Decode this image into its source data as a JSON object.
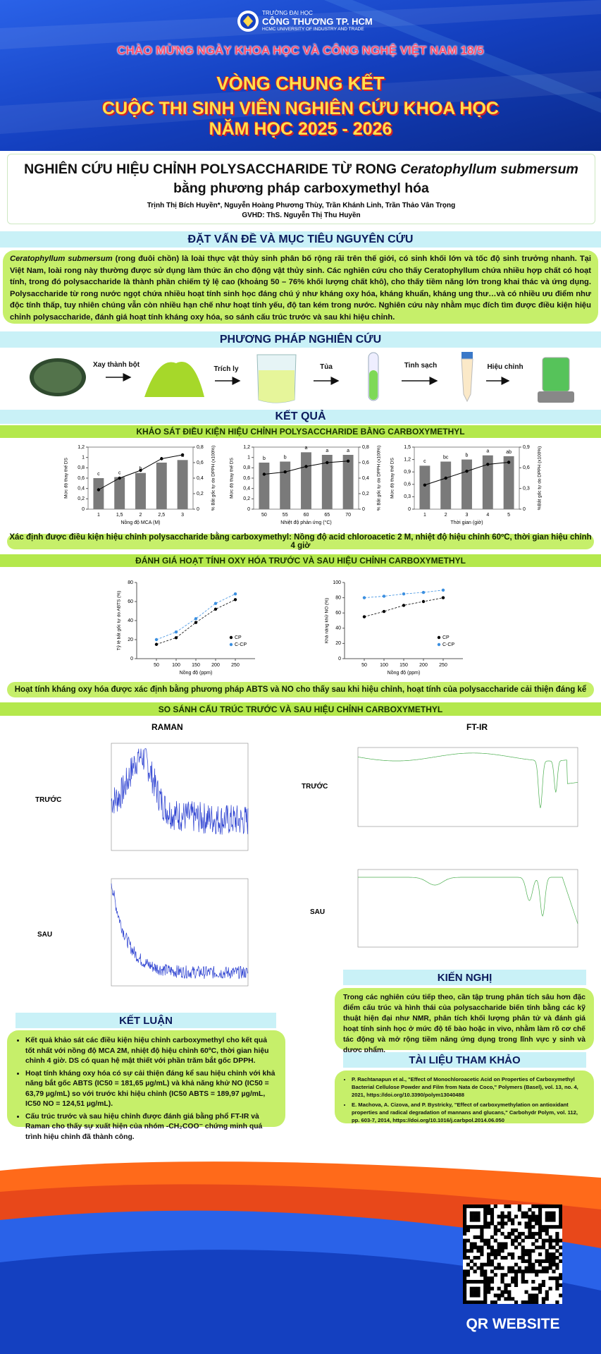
{
  "header": {
    "university_small": "TRƯỜNG ĐẠI HỌC",
    "university": "CÔNG THƯƠNG TP. HCM",
    "university_en": "HCMC UNIVERSITY OF INDUSTRY AND TRADE",
    "celebration": "CHÀO MỪNG NGÀY KHOA HỌC VÀ CÔNG NGHỆ VIỆT NAM 18/5",
    "round": "VÒNG CHUNG KẾT",
    "contest": "CUỘC THI SINH VIÊN NGHIÊN CỨU KHOA HỌC",
    "year": "NĂM HỌC 2025 - 2026"
  },
  "title": {
    "before": "NGHIÊN CỨU HIỆU CHỈNH POLYSACCHARIDE TỪ RONG ",
    "italic": "Ceratophyllum submersum",
    "after": " bằng phương pháp carboxymethyl hóa",
    "authors": "Trịnh Thị Bích Huyền*, Nguyễn Hoàng Phương Thùy, Trần Khánh Linh, Trần Thảo Vân Trọng",
    "advisor": "GVHD: ThS. Nguyễn Thị Thu Huyền"
  },
  "intro": {
    "heading": "ĐẶT VẤN ĐỀ VÀ MỤC TIÊU NGUYÊN CỨU",
    "species": "Ceratophyllum submersum",
    "text": " (rong đuôi chồn) là loài thực vật thủy sinh phân bố rộng rãi trên thế giới, có sinh khối lớn và tốc độ sinh trưởng nhanh. Tại Việt Nam, loài rong này thường được sử dụng làm thức ăn cho động vật thủy sinh. Các nghiên cứu cho thấy Ceratophyllum chứa nhiều hợp chất có hoạt tính, trong đó polysaccharide là thành phần chiếm tỷ lệ cao (khoảng 50 – 76% khối lượng chất khô), cho thấy tiềm năng lớn trong khai thác và ứng dụng. Polysaccharide từ rong nước ngọt chứa nhiều hoạt tính sinh học đáng chú ý như kháng oxy hóa, kháng khuẩn, kháng ung thư…và có nhiều ưu điểm như độc tính thấp, tuy nhiên chúng vẫn còn nhiều hạn chế như hoạt tính yếu, độ tan kém trong nước. Nghiên cứu này nhằm mục đích tìm được điều kiện hiệu chỉnh polysaccharide, đánh giá hoạt tính kháng oxy hóa, so sánh cấu trúc trước và sau khi hiệu chỉnh."
  },
  "methods": {
    "heading": "PHƯƠNG PHÁP NGHIÊN CỨU",
    "steps": [
      "Xay thành bột",
      "Trích ly",
      "Tủa",
      "Tinh sạch",
      "Hiệu chỉnh"
    ]
  },
  "results": {
    "heading": "KẾT QUẢ",
    "section1": "KHẢO SÁT ĐIỀU KIỆN HIỆU CHỈNH POLYSACCHARIDE BẰNG CARBOXYMETHYL",
    "conclusion1": "Xác định được điều kiện hiệu chỉnh polysaccharide bằng carboxymethyl: Nồng độ acid chloroacetic 2 M, nhiệt độ hiệu chỉnh 60ºC, thời gian hiệu chỉnh 4 giờ",
    "section2": "ĐÁNH GIÁ HOẠT TÍNH OXY HÓA TRƯỚC VÀ SAU HIỆU CHỈNH CARBOXYMETHYL",
    "conclusion2": "Hoạt tính kháng oxy hóa được xác định bằng phương pháp ABTS và NO cho thấy sau khi hiệu chỉnh, hoạt tính của polysaccharide cải thiện đáng kể",
    "section3": "SO SÁNH CẤU TRÚC TRƯỚC VÀ SAU HIỆU CHỈNH CARBOXYMETHYL",
    "raman": "RAMAN",
    "ftir": "FT-IR",
    "before": "TRƯỚC",
    "after": "SAU"
  },
  "chart_data": [
    {
      "type": "bar",
      "x_label": "Nồng độ MCA (M)",
      "y_label": "Mức độ thay thế DS",
      "y2_label": "% Bắt gốc tự do DPPH (x100%)",
      "categories": [
        "1",
        "1,5",
        "2",
        "2,5",
        "3"
      ],
      "series": [
        {
          "name": "DS",
          "color": "#7a7a7a",
          "values": [
            0.6,
            0.62,
            0.7,
            0.9,
            0.95
          ]
        },
        {
          "name": "DPPH",
          "color": "#000000",
          "axis": "y2",
          "values": [
            0.25,
            0.4,
            0.5,
            0.65,
            0.7
          ]
        }
      ],
      "annotations": [
        "c",
        "c",
        "b",
        "a",
        "a"
      ],
      "ylim": [
        0,
        1.2
      ],
      "yticks": [
        0,
        {
          "value": 0.2,
          "label": "0,2"
        },
        {
          "value": 0.4,
          "label": "0,4"
        },
        {
          "value": 0.6,
          "label": "0,6"
        },
        {
          "value": 0.8,
          "label": "0,8"
        },
        1,
        {
          "value": 1.2,
          "label": "1,2"
        }
      ],
      "y2lim": [
        0,
        0.8
      ],
      "y2ticks": [
        0,
        {
          "value": 0.2,
          "label": "0,2"
        },
        {
          "value": 0.4,
          "label": "0,4"
        },
        {
          "value": 0.6,
          "label": "0,6"
        },
        {
          "value": 0.8,
          "label": "0,8"
        }
      ]
    },
    {
      "type": "bar",
      "x_label": "Nhiệt độ phản ứng (°C)",
      "y_label": "Mức độ thay thế DS",
      "y2_label": "% Bắt gốc tự do DPPH (x100%)",
      "categories": [
        "50",
        "55",
        "60",
        "65",
        "70"
      ],
      "series": [
        {
          "name": "DS",
          "color": "#7a7a7a",
          "values": [
            0.9,
            0.92,
            1.1,
            1.05,
            1.05
          ]
        },
        {
          "name": "DPPH",
          "color": "#000000",
          "axis": "y2",
          "values": [
            0.45,
            0.48,
            0.55,
            0.6,
            0.62
          ]
        }
      ],
      "annotations": [
        "b",
        "b",
        "a",
        "a",
        "a"
      ],
      "ylim": [
        0,
        1.2
      ],
      "yticks": [
        0,
        {
          "value": 0.2,
          "label": "0,2"
        },
        {
          "value": 0.4,
          "label": "0,4"
        },
        {
          "value": 0.6,
          "label": "0,6"
        },
        {
          "value": 0.8,
          "label": "0,8"
        },
        1,
        {
          "value": 1.2,
          "label": "1,2"
        }
      ],
      "y2lim": [
        0,
        0.8
      ],
      "y2ticks": [
        0,
        {
          "value": 0.2,
          "label": "0,2"
        },
        {
          "value": 0.4,
          "label": "0,4"
        },
        {
          "value": 0.6,
          "label": "0,6"
        },
        {
          "value": 0.8,
          "label": "0,8"
        }
      ]
    },
    {
      "type": "bar",
      "x_label": "Thời gian (giờ)",
      "y_label": "Mức độ thay thế DS",
      "y2_label": "%Bắt gốc tự do DPPH (x100%)",
      "categories": [
        "1",
        "2",
        "3",
        "4",
        "5"
      ],
      "series": [
        {
          "name": "DS",
          "color": "#7a7a7a",
          "values": [
            1.05,
            1.15,
            1.2,
            1.3,
            1.28
          ]
        },
        {
          "name": "DPPH",
          "color": "#000000",
          "axis": "y2",
          "values": [
            0.35,
            0.45,
            0.55,
            0.65,
            0.68
          ]
        }
      ],
      "annotations": [
        "c",
        "bc",
        "b",
        "a",
        "ab"
      ],
      "ylim": [
        0,
        1.5
      ],
      "yticks": [
        0,
        {
          "value": 0.3,
          "label": "0,3"
        },
        {
          "value": 0.6,
          "label": "0,6"
        },
        {
          "value": 0.9,
          "label": "0,9"
        },
        {
          "value": 1.2,
          "label": "1,2"
        },
        {
          "value": 1.5,
          "label": "1,5"
        }
      ],
      "y2lim": [
        0,
        0.9
      ],
      "y2ticks": [
        0,
        {
          "value": 0.3,
          "label": "0,3"
        },
        {
          "value": 0.6,
          "label": "0,6"
        },
        {
          "value": 0.9,
          "label": "0,9"
        }
      ]
    },
    {
      "type": "line",
      "x_label": "Nồng độ (ppm)",
      "y_label": "Tỷ lệ bắt gốc tự do ABTS (%)",
      "x": [
        50,
        100,
        150,
        200,
        250
      ],
      "series": [
        {
          "name": "CP",
          "color": "#000000",
          "values": [
            15,
            22,
            38,
            52,
            62
          ]
        },
        {
          "name": "C-CP",
          "color": "#3b8fe0",
          "values": [
            20,
            28,
            42,
            58,
            68
          ]
        }
      ],
      "xlim": [
        0,
        300
      ],
      "xticks": [
        50,
        100,
        150,
        200,
        250
      ],
      "ylim": [
        0,
        80
      ],
      "yticks": [
        0,
        20,
        40,
        60,
        80
      ],
      "legend": "bottom-right"
    },
    {
      "type": "line",
      "x_label": "Nồng độ (ppm)",
      "y_label": "Khả năng khử NO (%)",
      "x": [
        50,
        100,
        150,
        200,
        250
      ],
      "series": [
        {
          "name": "CP",
          "color": "#000000",
          "values": [
            55,
            62,
            70,
            75,
            80
          ]
        },
        {
          "name": "C-CP",
          "color": "#3b8fe0",
          "values": [
            80,
            82,
            85,
            87,
            90
          ]
        }
      ],
      "xlim": [
        0,
        300
      ],
      "xticks": [
        50,
        100,
        150,
        200,
        250
      ],
      "ylim": [
        0,
        100
      ],
      "yticks": [
        0,
        20,
        40,
        60,
        80,
        100
      ],
      "legend": "bottom-right"
    }
  ],
  "conclusion": {
    "heading": "KẾT LUẬN",
    "items": [
      "Kết quả khảo sát các điều kiện hiệu chỉnh carboxymethyl cho kết quả tốt nhất với nồng độ MCA 2M, nhiệt độ hiệu chỉnh 60ºC, thời gian hiệu chỉnh 4 giờ. DS có quan hệ mật thiết với phần trăm bắt gốc DPPH.",
      "Hoạt tính kháng oxy hóa có sự cải thiện đáng kể sau hiệu chỉnh với khả năng bắt gốc ABTS (IC50 = 181,65 µg/mL) và khả năng khử NO (IC50 = 63,79 µg/mL) so với trước khi hiệu chỉnh (IC50 ABTS = 189,97 µg/mL, IC50 NO = 124,51 µg/mL).",
      "Cấu trúc trước và sau hiệu chỉnh được đánh giá bằng phổ FT-IR và Raman cho thấy sự xuất hiện của nhóm -CH₂COO⁻ chứng minh quá trình hiệu chỉnh đã thành công."
    ]
  },
  "recommendation": {
    "heading": "KIẾN NGHỊ",
    "text": "Trong các nghiên cứu tiếp theo, cần tập trung phân tích sâu hơn đặc điểm cấu trúc và hình thái của polysaccharide biến tính bằng các kỹ thuật hiện đại như NMR, phân tích khối lượng phân tử và đánh giá hoạt tính sinh học ở mức độ tế bào hoặc in vivo, nhằm làm rõ cơ chế tác động và mở rộng tiềm năng ứng dụng trong lĩnh vực y sinh và dược phẩm."
  },
  "references": {
    "heading": "TÀI LIỆU THAM KHẢO",
    "items": [
      "P. Rachtanapun et al., \"Effect of Monochloroacetic Acid on Properties of Carboxymethyl Bacterial Cellulose Powder and Film from Nata de Coco,\" Polymers (Basel), vol. 13, no. 4, 2021, https://doi.org/10.3390/polym13040488",
      "E. Machova, A. Cizova, and P. Bystricky, \"Effect of carboxymethylation on antioxidant properties and radical degradation of mannans and glucans,\" Carbohydr Polym, vol. 112, pp. 603-7, 2014, https://doi.org/10.1016/j.carbpol.2014.06.050"
    ]
  },
  "footer": {
    "qr_label": "QR WEBSITE"
  }
}
